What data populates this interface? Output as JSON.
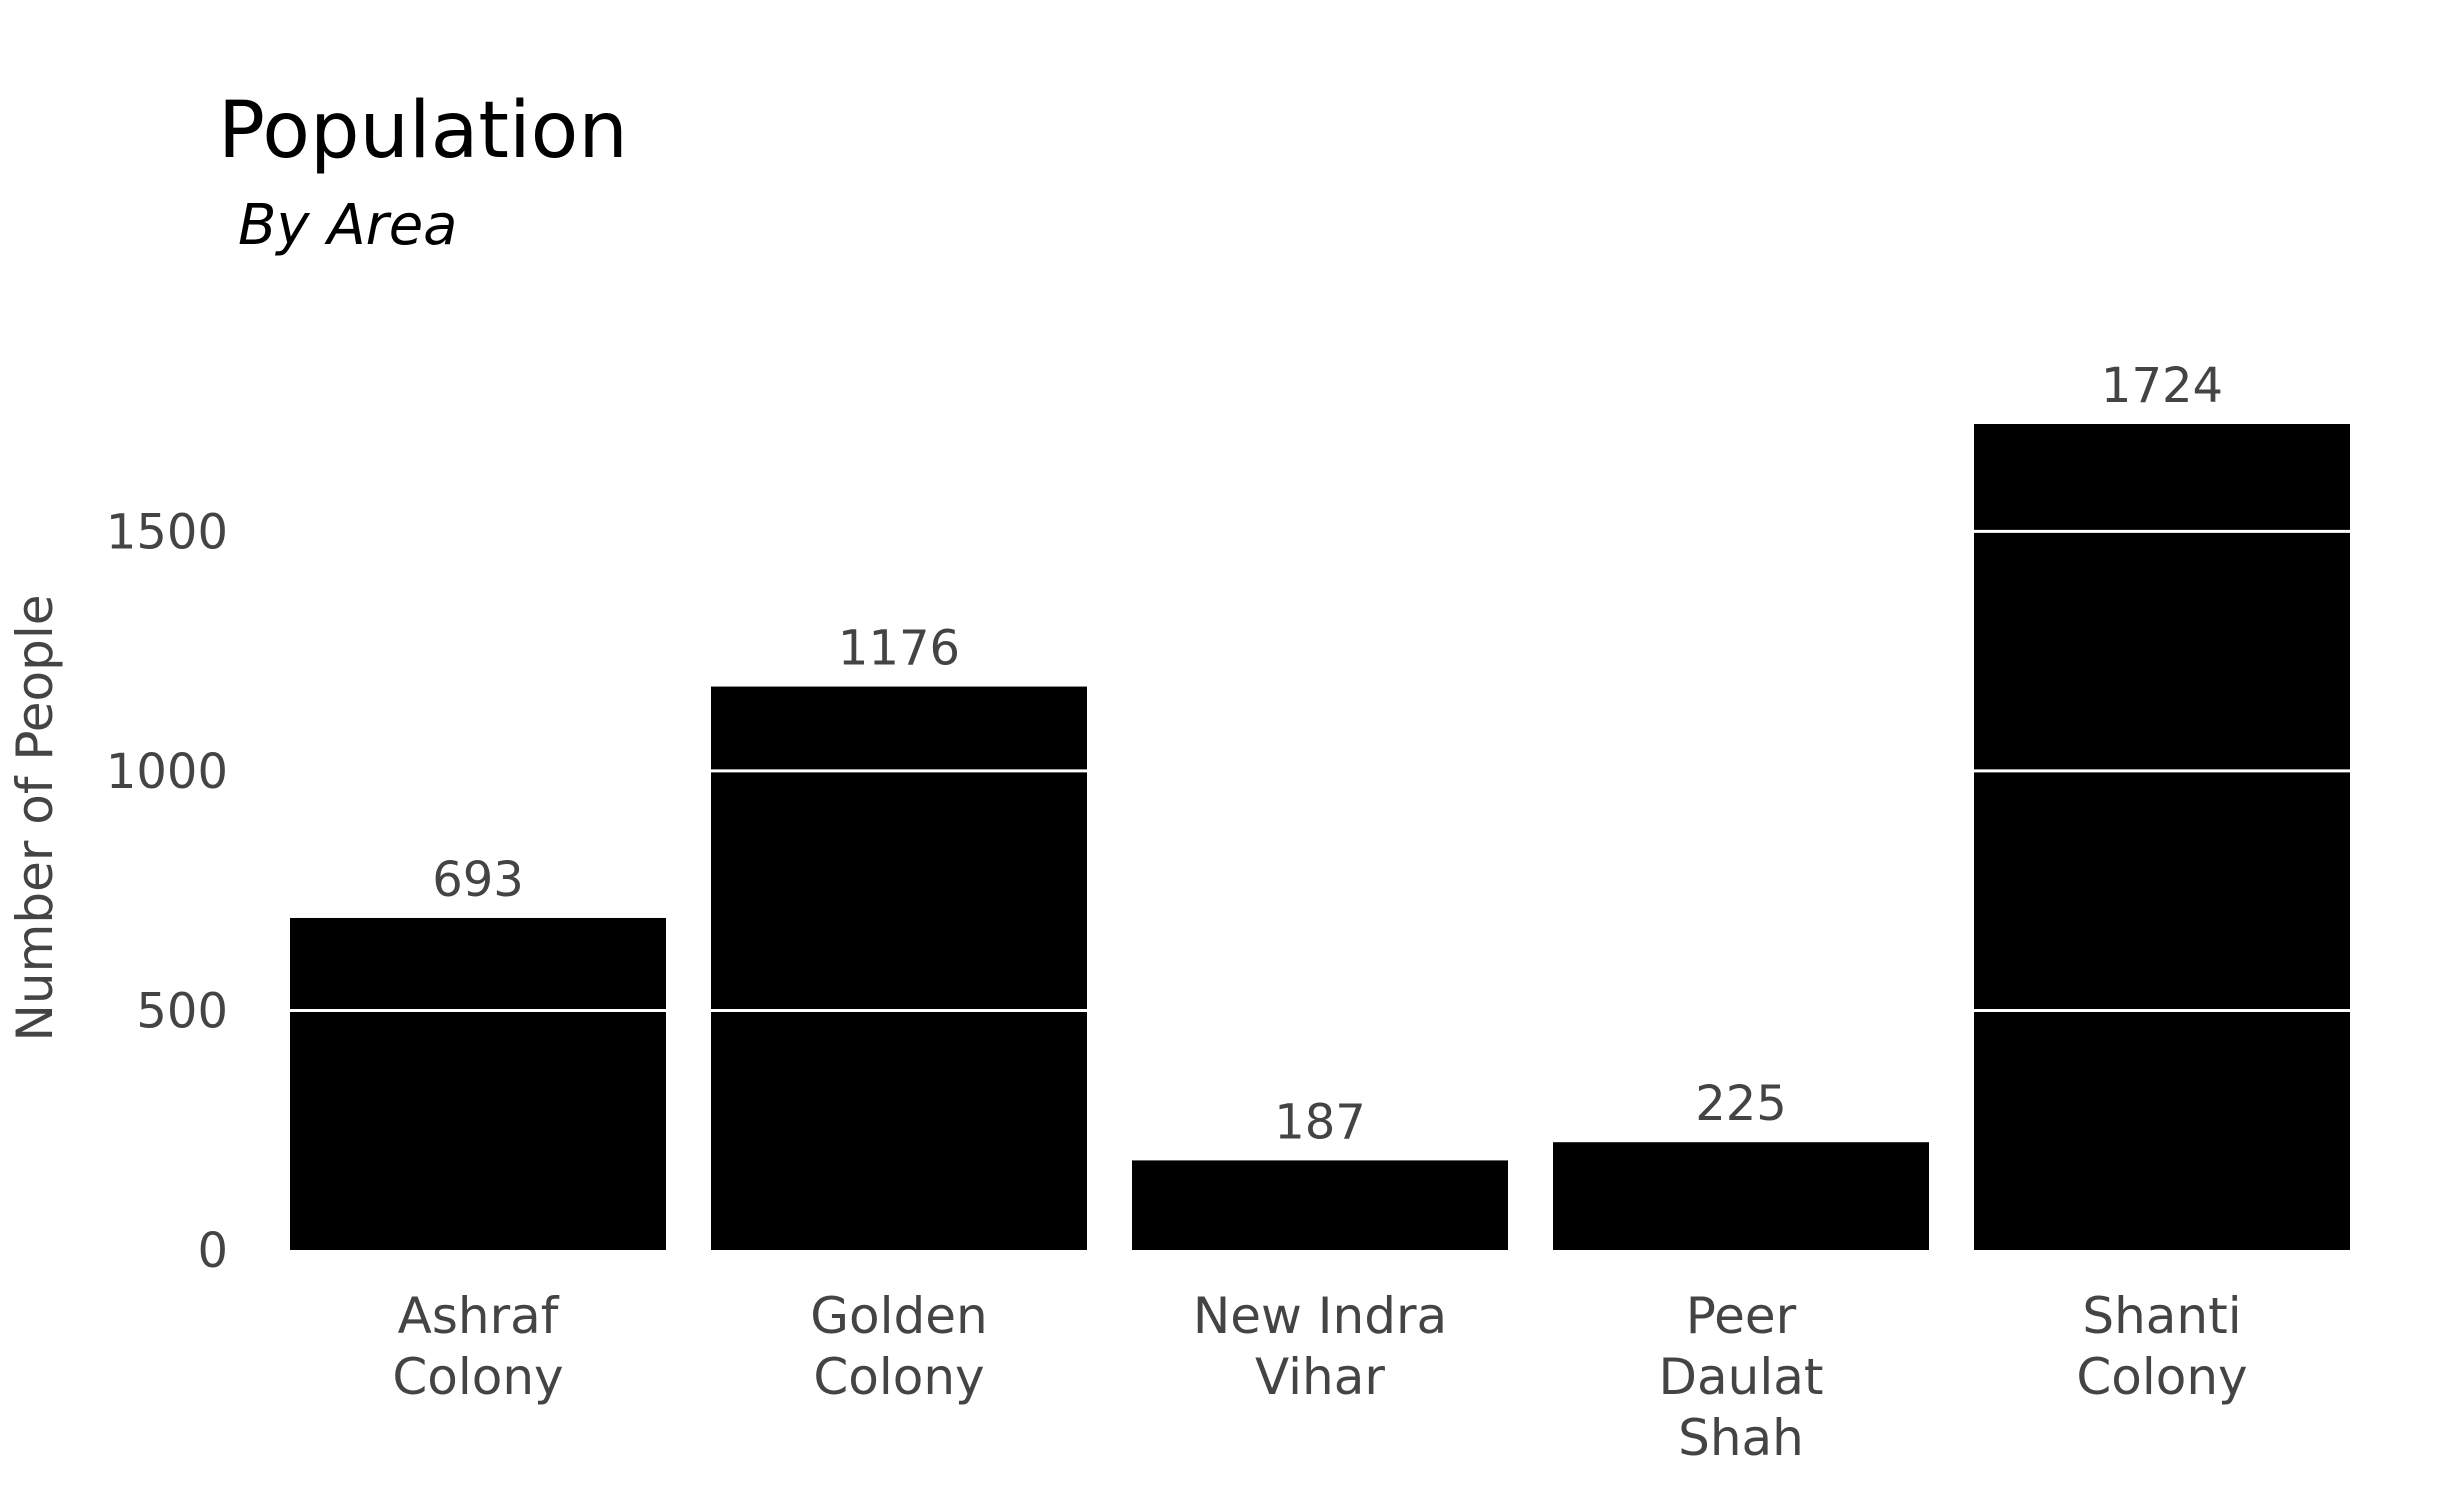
{
  "chart_data": {
    "type": "bar",
    "title": "Population",
    "subtitle": "By Area",
    "xlabel": "",
    "ylabel": "Number of People",
    "categories": [
      [
        "Ashraf",
        "Colony"
      ],
      [
        "Golden",
        "Colony"
      ],
      [
        "New Indra",
        "Vihar"
      ],
      [
        "Peer",
        "Daulat",
        "Shah"
      ],
      [
        "Shanti",
        "Colony"
      ]
    ],
    "values": [
      693,
      1176,
      187,
      225,
      1724
    ],
    "ylim": [
      0,
      1724
    ],
    "yticks": [
      0,
      500,
      1000,
      1500
    ],
    "grid": true,
    "bar_color": "#000000",
    "grid_color": "#ffffff"
  }
}
